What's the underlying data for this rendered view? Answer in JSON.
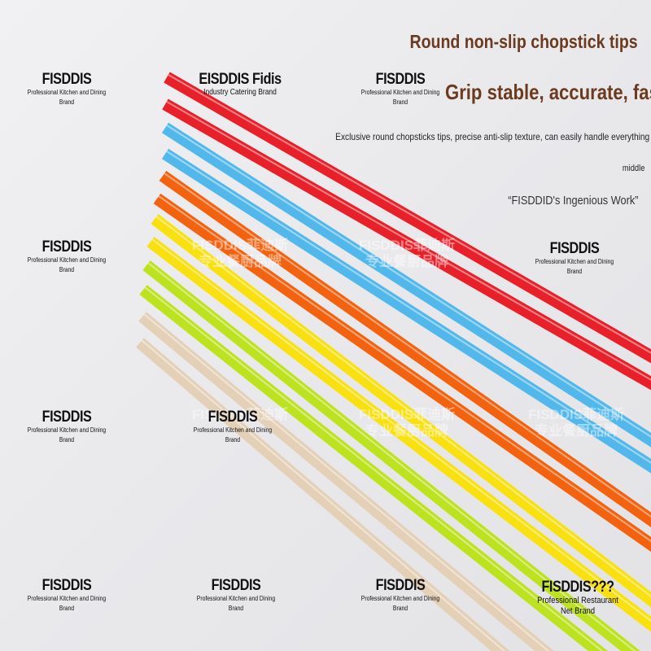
{
  "headline": "Round non-slip chopstick tips",
  "subheadline": "Grip stable, accurate, fast",
  "description": "Exclusive round chopsticks tips, precise anti-slip texture, can easily handle everything",
  "description_cont": "middle",
  "quote": "“FISDDID's Ingenious Work”",
  "brand_top": {
    "title": "EISDDIS Fidis",
    "subtitle": "Industry Catering Brand"
  },
  "brand_bottom_right": {
    "title": "FISDDIS???",
    "subtitle": "Professional Restaurant Net Brand"
  },
  "watermark": {
    "title": "FISDDIS",
    "line1": "Professional Kitchen and Dining",
    "line2": "Brand"
  },
  "watermark_cn": {
    "line1": "FISDDIS菲迪斯",
    "line2": "专业餐厨品牌"
  },
  "chopstick_colors": [
    "#e8202a",
    "#e8202a",
    "#52b8ec",
    "#52b8ec",
    "#f2620f",
    "#f2620f",
    "#f9e010",
    "#f9e010",
    "#bde21f",
    "#bde21f",
    "#e3d0b6",
    "#e3d0b6"
  ]
}
